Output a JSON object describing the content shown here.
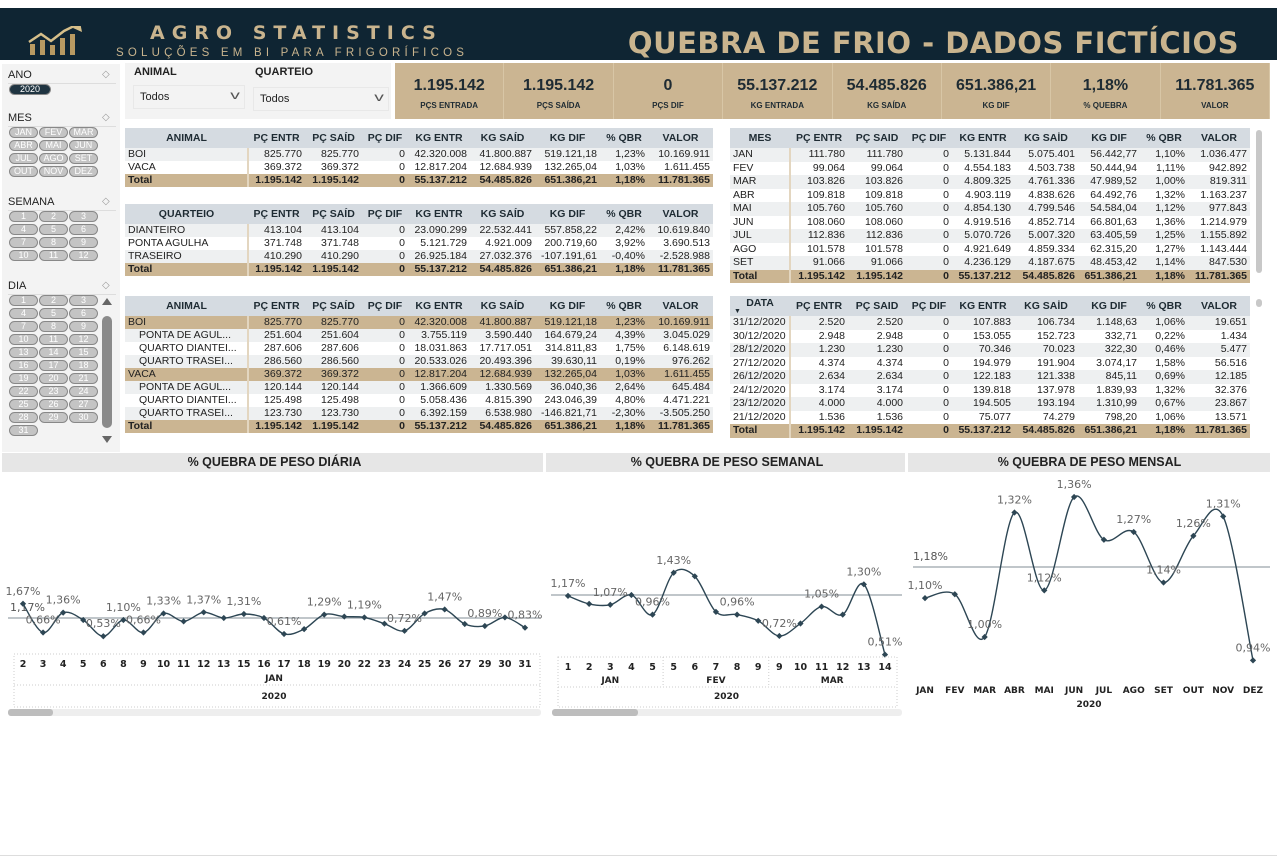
{
  "header": {
    "brand_name": "AGRO STATISTICS",
    "brand_tagline": "SOLUÇÕES EM BI PARA FRIGORÍFICOS",
    "title": "QUEBRA DE FRIO - DADOS FICTÍCIOS",
    "brand_color": "#c9b48e",
    "background": "#0f2533"
  },
  "slicers": {
    "ano": {
      "label": "ANO",
      "selected": "2020"
    },
    "mes": {
      "label": "MES",
      "options": [
        "JAN",
        "FEV",
        "MAR",
        "ABR",
        "MAI",
        "JUN",
        "JUL",
        "AGO",
        "SET",
        "OUT",
        "NOV",
        "DEZ"
      ]
    },
    "semana": {
      "label": "SEMANA",
      "options": [
        "1",
        "2",
        "3",
        "4",
        "5",
        "6",
        "7",
        "8",
        "9",
        "10",
        "11",
        "12"
      ]
    },
    "dia": {
      "label": "DIA",
      "options": [
        "1",
        "2",
        "3",
        "4",
        "5",
        "6",
        "7",
        "8",
        "9",
        "10",
        "11",
        "12",
        "13",
        "14",
        "15",
        "16",
        "17",
        "18",
        "19",
        "20",
        "21",
        "22",
        "23",
        "24",
        "25",
        "26",
        "27",
        "28",
        "29",
        "30",
        "31"
      ]
    }
  },
  "filters": {
    "animal": {
      "label": "ANIMAL",
      "value": "Todos"
    },
    "quarteio": {
      "label": "QUARTEIO",
      "value": "Todos"
    }
  },
  "kpis": [
    {
      "value": "1.195.142",
      "label": "PÇS ENTRADA"
    },
    {
      "value": "1.195.142",
      "label": "PÇS SAÍDA"
    },
    {
      "value": "0",
      "label": "PÇS DIF"
    },
    {
      "value": "55.137.212",
      "label": "KG ENTRADA"
    },
    {
      "value": "54.485.826",
      "label": "KG SAÍDA"
    },
    {
      "value": "651.386,21",
      "label": "KG DIF"
    },
    {
      "value": "1,18%",
      "label": "% QUEBRA"
    },
    {
      "value": "11.781.365",
      "label": "VALOR"
    }
  ],
  "tables": {
    "animal": {
      "columns": [
        "ANIMAL",
        "PÇ ENTR",
        "PÇ SAÍD",
        "PÇ DIF",
        "KG ENTR",
        "KG SAÍD",
        "KG DIF",
        "% QBR",
        "VALOR"
      ],
      "rows": [
        {
          "type": "row",
          "cells": [
            "BOI",
            "825.770",
            "825.770",
            "0",
            "42.320.008",
            "41.800.887",
            "519.121,18",
            "1,23%",
            "10.169.911"
          ]
        },
        {
          "type": "row",
          "cells": [
            "VACA",
            "369.372",
            "369.372",
            "0",
            "12.817.204",
            "12.684.939",
            "132.265,04",
            "1,03%",
            "1.611.455"
          ]
        },
        {
          "type": "total",
          "cells": [
            "Total",
            "1.195.142",
            "1.195.142",
            "0",
            "55.137.212",
            "54.485.826",
            "651.386,21",
            "1,18%",
            "11.781.365"
          ]
        }
      ]
    },
    "quarteio": {
      "columns": [
        "QUARTEIO",
        "PÇ ENTR",
        "PÇ SAÍD",
        "PÇ DIF",
        "KG ENTR",
        "KG SAÍD",
        "KG DIF",
        "% QBR",
        "VALOR"
      ],
      "rows": [
        {
          "type": "row",
          "cells": [
            "DIANTEIRO",
            "413.104",
            "413.104",
            "0",
            "23.090.299",
            "22.532.441",
            "557.858,22",
            "2,42%",
            "10.619.840"
          ]
        },
        {
          "type": "row",
          "cells": [
            "PONTA AGULHA",
            "371.748",
            "371.748",
            "0",
            "5.121.729",
            "4.921.009",
            "200.719,60",
            "3,92%",
            "3.690.513"
          ]
        },
        {
          "type": "row",
          "cells": [
            "TRASEIRO",
            "410.290",
            "410.290",
            "0",
            "26.925.184",
            "27.032.376",
            "-107.191,61",
            "-0,40%",
            "-2.528.988"
          ]
        },
        {
          "type": "total",
          "cells": [
            "Total",
            "1.195.142",
            "1.195.142",
            "0",
            "55.137.212",
            "54.485.826",
            "651.386,21",
            "1,18%",
            "11.781.365"
          ]
        }
      ]
    },
    "animal_quarteio": {
      "columns": [
        "ANIMAL",
        "PÇ ENTR",
        "PÇ SAÍD",
        "PÇ DIF",
        "KG ENTR",
        "KG SAÍD",
        "KG DIF",
        "% QBR",
        "VALOR"
      ],
      "rows": [
        {
          "type": "group",
          "cells": [
            "BOI",
            "825.770",
            "825.770",
            "0",
            "42.320.008",
            "41.800.887",
            "519.121,18",
            "1,23%",
            "10.169.911"
          ]
        },
        {
          "type": "sub",
          "cells": [
            "PONTA DE AGUL...",
            "251.604",
            "251.604",
            "0",
            "3.755.119",
            "3.590.440",
            "164.679,24",
            "4,39%",
            "3.045.029"
          ]
        },
        {
          "type": "sub",
          "cells": [
            "QUARTO DIANTEI...",
            "287.606",
            "287.606",
            "0",
            "18.031.863",
            "17.717.051",
            "314.811,83",
            "1,75%",
            "6.148.619"
          ]
        },
        {
          "type": "sub",
          "cells": [
            "QUARTO TRASEI...",
            "286.560",
            "286.560",
            "0",
            "20.533.026",
            "20.493.396",
            "39.630,11",
            "0,19%",
            "976.262"
          ]
        },
        {
          "type": "group",
          "cells": [
            "VACA",
            "369.372",
            "369.372",
            "0",
            "12.817.204",
            "12.684.939",
            "132.265,04",
            "1,03%",
            "1.611.455"
          ]
        },
        {
          "type": "sub",
          "cells": [
            "PONTA DE AGUL...",
            "120.144",
            "120.144",
            "0",
            "1.366.609",
            "1.330.569",
            "36.040,36",
            "2,64%",
            "645.484"
          ]
        },
        {
          "type": "sub",
          "cells": [
            "QUARTO DIANTEI...",
            "125.498",
            "125.498",
            "0",
            "5.058.436",
            "4.815.390",
            "243.046,39",
            "4,80%",
            "4.471.221"
          ]
        },
        {
          "type": "sub",
          "cells": [
            "QUARTO TRASEI...",
            "123.730",
            "123.730",
            "0",
            "6.392.159",
            "6.538.980",
            "-146.821,71",
            "-2,30%",
            "-3.505.250"
          ]
        },
        {
          "type": "total",
          "cells": [
            "Total",
            "1.195.142",
            "1.195.142",
            "0",
            "55.137.212",
            "54.485.826",
            "651.386,21",
            "1,18%",
            "11.781.365"
          ]
        }
      ]
    },
    "mes": {
      "columns": [
        "MES",
        "PÇ ENTR",
        "PÇ SAID",
        "PÇ DIF",
        "KG ENTR",
        "KG SAİD",
        "KG DIF",
        "% QBR",
        "VALOR"
      ],
      "rows": [
        {
          "type": "row",
          "cells": [
            "JAN",
            "111.780",
            "111.780",
            "0",
            "5.131.844",
            "5.075.401",
            "56.442,77",
            "1,10%",
            "1.036.477"
          ]
        },
        {
          "type": "row",
          "cells": [
            "FEV",
            "99.064",
            "99.064",
            "0",
            "4.554.183",
            "4.503.738",
            "50.444,94",
            "1,11%",
            "942.892"
          ]
        },
        {
          "type": "row",
          "cells": [
            "MAR",
            "103.826",
            "103.826",
            "0",
            "4.809.325",
            "4.761.336",
            "47.989,52",
            "1,00%",
            "819.311"
          ]
        },
        {
          "type": "row",
          "cells": [
            "ABR",
            "109.818",
            "109.818",
            "0",
            "4.903.119",
            "4.838.626",
            "64.492,76",
            "1,32%",
            "1.163.237"
          ]
        },
        {
          "type": "row",
          "cells": [
            "MAI",
            "105.760",
            "105.760",
            "0",
            "4.854.130",
            "4.799.546",
            "54.584,04",
            "1,12%",
            "977.843"
          ]
        },
        {
          "type": "row",
          "cells": [
            "JUN",
            "108.060",
            "108.060",
            "0",
            "4.919.516",
            "4.852.714",
            "66.801,63",
            "1,36%",
            "1.214.979"
          ]
        },
        {
          "type": "row",
          "cells": [
            "JUL",
            "112.836",
            "112.836",
            "0",
            "5.070.726",
            "5.007.320",
            "63.405,59",
            "1,25%",
            "1.155.892"
          ]
        },
        {
          "type": "row",
          "cells": [
            "AGO",
            "101.578",
            "101.578",
            "0",
            "4.921.649",
            "4.859.334",
            "62.315,20",
            "1,27%",
            "1.143.444"
          ]
        },
        {
          "type": "row",
          "cells": [
            "SET",
            "91.066",
            "91.066",
            "0",
            "4.236.129",
            "4.187.675",
            "48.453,42",
            "1,14%",
            "847.530"
          ]
        },
        {
          "type": "total",
          "cells": [
            "Total",
            "1.195.142",
            "1.195.142",
            "0",
            "55.137.212",
            "54.485.826",
            "651.386,21",
            "1,18%",
            "11.781.365"
          ]
        }
      ]
    },
    "data": {
      "columns": [
        "DATA",
        "PÇ ENTR",
        "PÇ SAID",
        "PÇ DIF",
        "KG ENTR",
        "KG SAİD",
        "KG DIF",
        "% QBR",
        "VALOR"
      ],
      "sort_icon": "sort-descending-icon",
      "rows": [
        {
          "type": "row",
          "cells": [
            "31/12/2020",
            "2.520",
            "2.520",
            "0",
            "107.883",
            "106.734",
            "1.148,63",
            "1,06%",
            "19.651"
          ]
        },
        {
          "type": "row",
          "cells": [
            "30/12/2020",
            "2.948",
            "2.948",
            "0",
            "153.055",
            "152.723",
            "332,71",
            "0,22%",
            "1.434"
          ]
        },
        {
          "type": "row",
          "cells": [
            "28/12/2020",
            "1.230",
            "1.230",
            "0",
            "70.346",
            "70.023",
            "322,30",
            "0,46%",
            "5.477"
          ]
        },
        {
          "type": "row",
          "cells": [
            "27/12/2020",
            "4.374",
            "4.374",
            "0",
            "194.979",
            "191.904",
            "3.074,17",
            "1,58%",
            "56.516"
          ]
        },
        {
          "type": "row",
          "cells": [
            "26/12/2020",
            "2.634",
            "2.634",
            "0",
            "122.183",
            "121.338",
            "845,11",
            "0,69%",
            "12.185"
          ]
        },
        {
          "type": "row",
          "cells": [
            "24/12/2020",
            "3.174",
            "3.174",
            "0",
            "139.818",
            "137.978",
            "1.839,93",
            "1,32%",
            "32.376"
          ]
        },
        {
          "type": "row",
          "cells": [
            "23/12/2020",
            "4.000",
            "4.000",
            "0",
            "194.505",
            "193.194",
            "1.310,99",
            "0,67%",
            "23.867"
          ]
        },
        {
          "type": "row",
          "cells": [
            "21/12/2020",
            "1.536",
            "1.536",
            "0",
            "75.077",
            "74.279",
            "798,20",
            "1,06%",
            "13.571"
          ]
        },
        {
          "type": "total",
          "cells": [
            "Total",
            "1.195.142",
            "1.195.142",
            "0",
            "55.137.212",
            "54.485.826",
            "651.386,21",
            "1,18%",
            "11.781.365"
          ]
        }
      ]
    }
  },
  "chart_data": [
    {
      "type": "line",
      "title": "% QUEBRA DE PESO DIÁRIA",
      "line_color": "#2d4654",
      "x": [
        "2",
        "3",
        "4",
        "5",
        "6",
        "8",
        "9",
        "10",
        "11",
        "12",
        "13",
        "15",
        "16",
        "17",
        "18",
        "19",
        "20",
        "22",
        "23",
        "24",
        "25",
        "26",
        "27",
        "29",
        "30",
        "31"
      ],
      "values": [
        1.67,
        0.66,
        1.36,
        1.1,
        0.53,
        1.1,
        0.66,
        1.33,
        1.05,
        1.37,
        1.17,
        1.31,
        1.17,
        0.61,
        0.78,
        1.29,
        1.22,
        1.19,
        0.97,
        0.72,
        1.33,
        1.47,
        0.96,
        0.89,
        1.19,
        0.83
      ],
      "labels": [
        "1,67%",
        "0,66%",
        "1,36%",
        null,
        "0,53%",
        "1,10%",
        "0,66%",
        "1,33%",
        null,
        "1,37%",
        null,
        "1,31%",
        null,
        "0,61%",
        null,
        "1,29%",
        null,
        "1,19%",
        null,
        "0,72%",
        null,
        "1,47%",
        null,
        "0,89%",
        null,
        "0,83%"
      ],
      "reference_line": {
        "value": 1.17,
        "label": "1,17%"
      },
      "groups": [
        {
          "label": "JAN",
          "count": 26
        }
      ],
      "year": "2020"
    },
    {
      "type": "line",
      "title": "% QUEBRA DE PESO SEMANAL",
      "line_color": "#2d4654",
      "x": [
        "1",
        "2",
        "3",
        "4",
        "5",
        "5",
        "6",
        "7",
        "8",
        "9",
        "9",
        "10",
        "11",
        "12",
        "13",
        "14"
      ],
      "values": [
        1.17,
        1.08,
        1.07,
        1.18,
        0.96,
        1.43,
        1.39,
        0.99,
        0.96,
        0.89,
        0.72,
        0.86,
        1.05,
        0.96,
        1.3,
        0.51
      ],
      "labels": [
        "1,17%",
        null,
        "1,07%",
        null,
        "0,96%",
        "1,43%",
        null,
        null,
        "0,96%",
        null,
        "0,72%",
        null,
        "1,05%",
        null,
        "1,30%",
        "0,51%"
      ],
      "reference_line": {
        "value": 1.18,
        "label": ""
      },
      "groups": [
        {
          "label": "JAN",
          "count": 5
        },
        {
          "label": "FEV",
          "count": 5
        },
        {
          "label": "MAR",
          "count": 6
        }
      ],
      "year": "2020"
    },
    {
      "type": "line",
      "title": "% QUEBRA DE PESO MENSAL",
      "line_color": "#2d4654",
      "x": [
        "JAN",
        "FEV",
        "MAR",
        "ABR",
        "MAI",
        "JUN",
        "JUL",
        "AGO",
        "SET",
        "OUT",
        "NOV",
        "DEZ"
      ],
      "values": [
        1.1,
        1.11,
        1.0,
        1.32,
        1.12,
        1.36,
        1.25,
        1.27,
        1.14,
        1.26,
        1.31,
        0.94
      ],
      "labels": [
        "1,10%",
        null,
        "1,00%",
        "1,32%",
        "1,12%",
        "1,36%",
        null,
        "1,27%",
        "1,14%",
        "1,26%",
        "1,31%",
        "0,94%"
      ],
      "reference_line": {
        "value": 1.18,
        "label": "1,18%"
      },
      "groups": [],
      "year": "2020"
    }
  ]
}
